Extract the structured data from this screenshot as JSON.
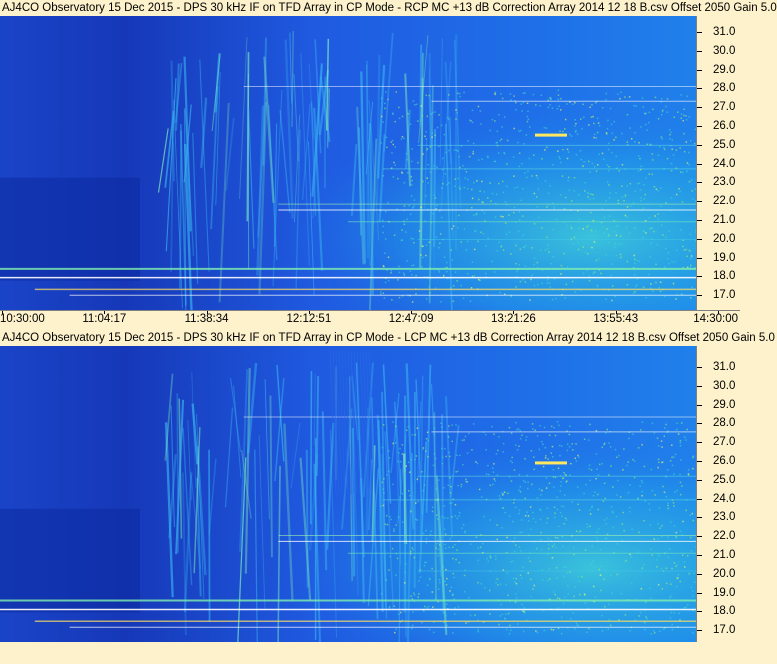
{
  "panels": [
    {
      "title": "AJ4CO Observatory 15 Dec 2015 - DPS 30 kHz IF on TFD Array in CP Mode - RCP  MC +13 dB  Correction Array 2014 12 18 B.csv  Offset 2050  Gain 5.0",
      "y_labels": [
        "31.0",
        "30.0",
        "29.0",
        "28.0",
        "27.0",
        "26.0",
        "25.0",
        "24.0",
        "23.0",
        "22.0",
        "21.0",
        "20.0",
        "19.0",
        "18.0",
        "17.0"
      ],
      "x_labels": [
        "10:30:00",
        "11:04:17",
        "11:38:34",
        "12:12:51",
        "12:47:09",
        "13:21:26",
        "13:55:43",
        "14:30:00"
      ]
    },
    {
      "title": "AJ4CO Observatory 15 Dec 2015 - DPS 30 kHz IF on TFD Array in CP Mode - LCP  MC +13 dB  Correction Array 2014 12 18 B.csv  Offset 2050  Gain 5.0",
      "y_labels": [
        "31.0",
        "30.0",
        "29.0",
        "28.0",
        "27.0",
        "26.0",
        "25.0",
        "24.0",
        "23.0",
        "22.0",
        "21.0",
        "20.0",
        "19.0",
        "18.0",
        "17.0"
      ],
      "x_labels": []
    }
  ],
  "colors": {
    "background": "#fdf2cc",
    "spectro_low": "#1f4fd8",
    "spectro_mid": "#1aa0e8",
    "spectro_high": "#48e0c8",
    "peak": "#ffffff"
  }
}
